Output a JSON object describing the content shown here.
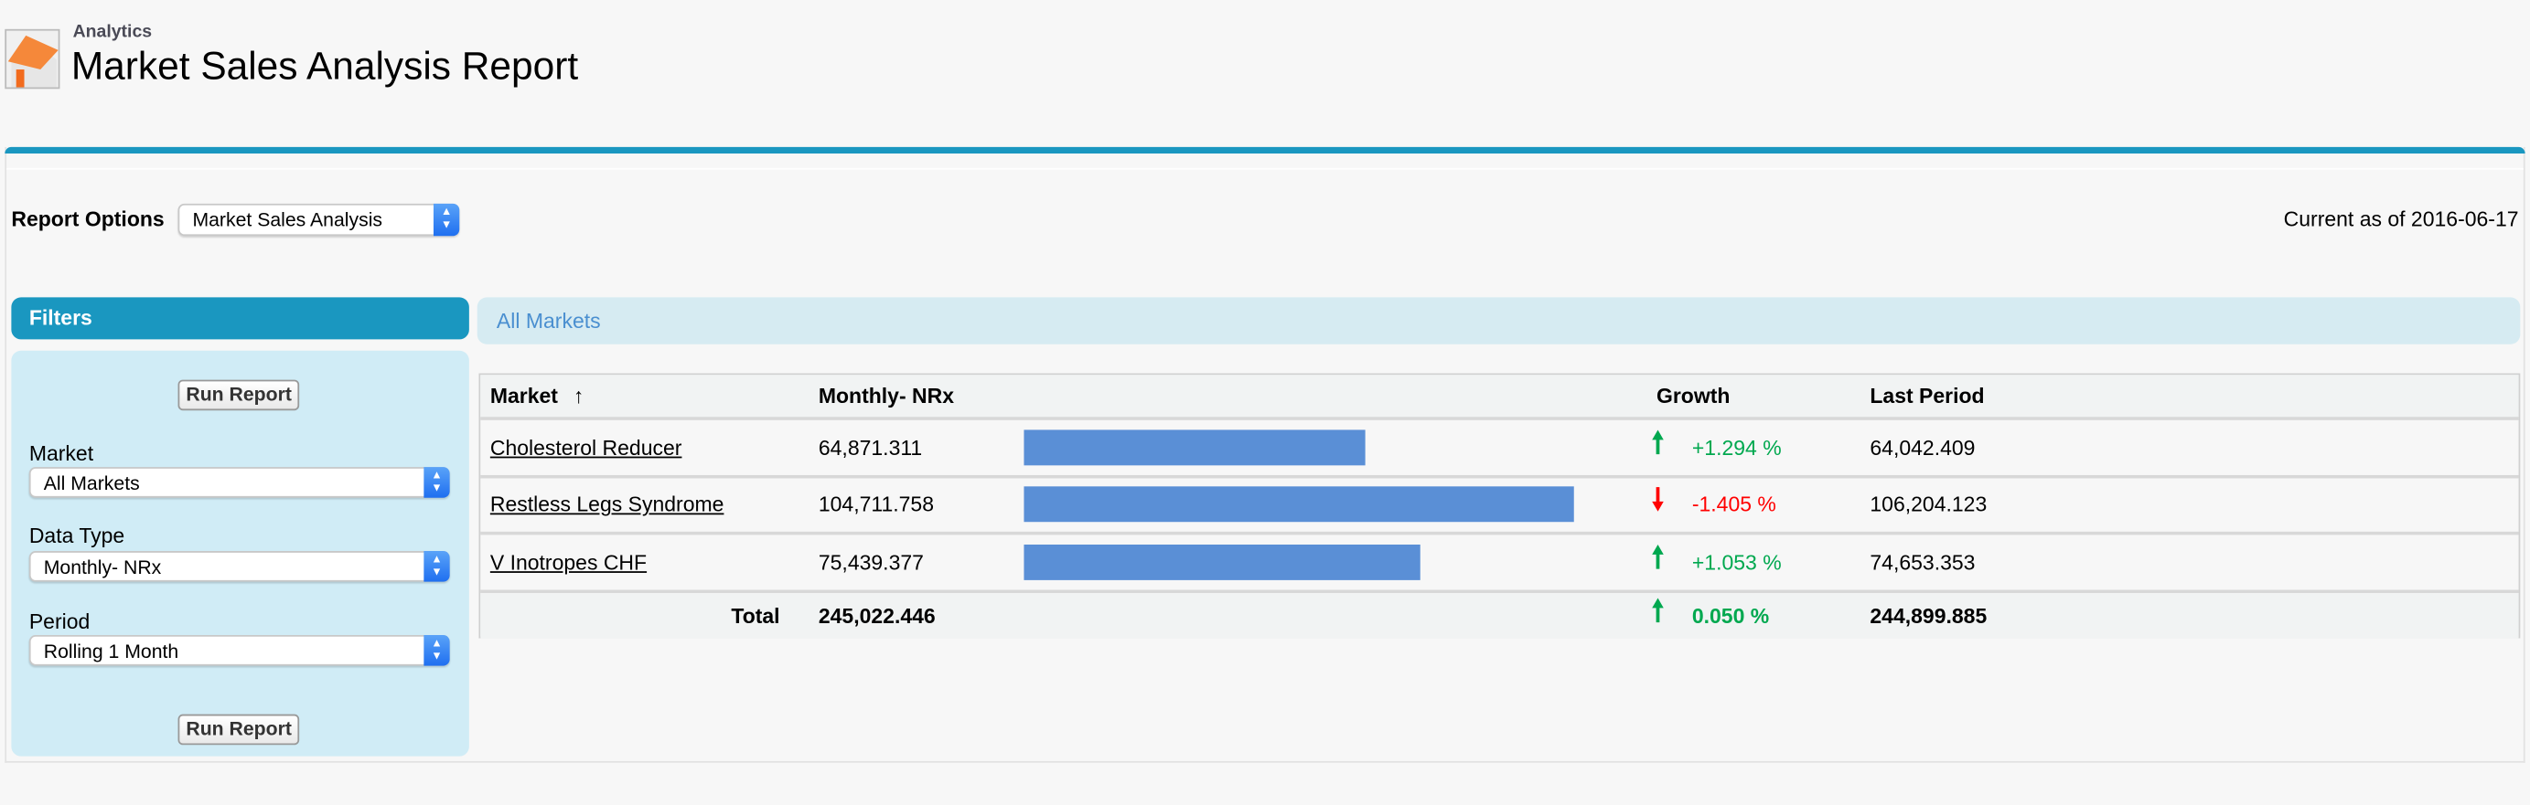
{
  "header": {
    "app": "Analytics",
    "title": "Market Sales Analysis Report"
  },
  "options": {
    "label": "Report Options",
    "selected": "Market Sales Analysis",
    "as_of": "Current as of 2016-06-17"
  },
  "filters": {
    "title": "Filters",
    "run_label": "Run Report",
    "market_label": "Market",
    "market_value": "All Markets",
    "datatype_label": "Data Type",
    "datatype_value": "Monthly- NRx",
    "period_label": "Period",
    "period_value": "Rolling 1 Month"
  },
  "section": {
    "title": "All Markets"
  },
  "table": {
    "columns": {
      "market": "Market",
      "sort_icon": "↑",
      "monthly": "Monthly- NRx",
      "growth": "Growth",
      "last": "Last Period"
    },
    "rows": [
      {
        "market": "Cholesterol Reducer",
        "monthly": "64,871.311",
        "value": 64871.311,
        "growth": "+1.294 %",
        "dir": "up",
        "last": "64,042.409"
      },
      {
        "market": "Restless Legs Syndrome",
        "monthly": "104,711.758",
        "value": 104711.758,
        "growth": "-1.405 %",
        "dir": "down",
        "last": "106,204.123"
      },
      {
        "market": "V Inotropes CHF",
        "monthly": "75,439.377",
        "value": 75439.377,
        "growth": "+1.053 %",
        "dir": "up",
        "last": "74,653.353"
      }
    ],
    "total": {
      "label": "Total",
      "monthly": "245,022.446",
      "growth": "0.050 %",
      "dir": "up",
      "last": "244,899.885"
    }
  },
  "colors": {
    "accent": "#1a97c0",
    "bar": "#5a8fd6",
    "up": "#00a84f",
    "down": "#ff0000"
  }
}
